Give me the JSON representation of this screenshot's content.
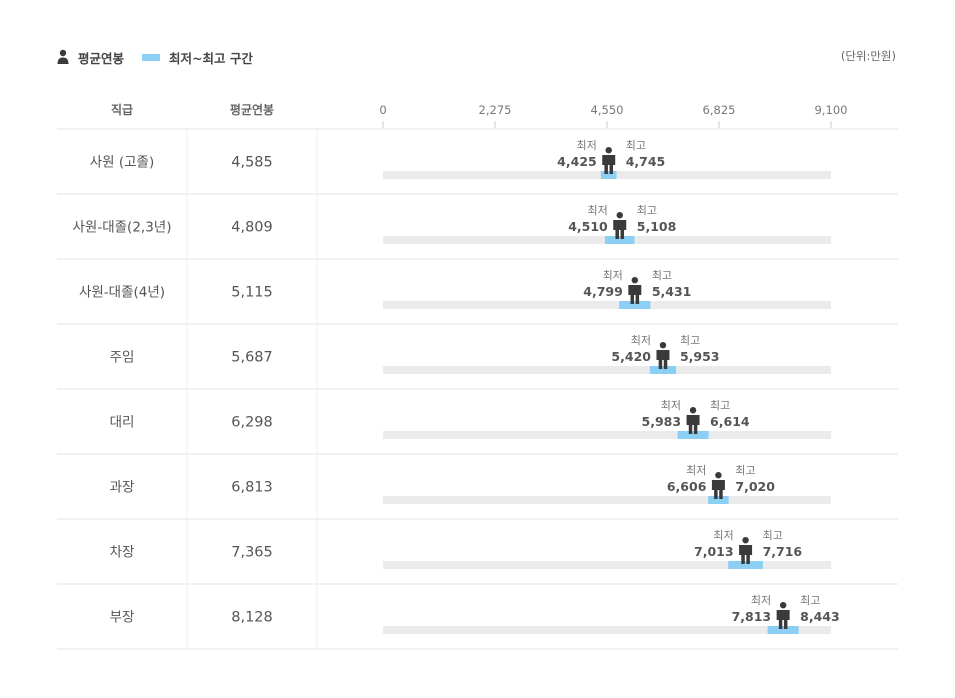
{
  "legend": {
    "avg_label": "평균연봉",
    "range_label": "최저~최고 구간"
  },
  "unit_label": "(단위:만원)",
  "colors": {
    "track": "#ebebeb",
    "range": "#8ccff5",
    "person": "#3a3a3a"
  },
  "chart_data": {
    "type": "table",
    "columns": [
      "직급",
      "평균연봉"
    ],
    "xlim": [
      0,
      9100
    ],
    "ticks": [
      "0",
      "2,275",
      "4,550",
      "6,825",
      "9,100"
    ],
    "tick_values": [
      0,
      2275,
      4550,
      6825,
      9100
    ],
    "min_label": "최저",
    "max_label": "최고",
    "rows": [
      {
        "rank": "사원 (고졸)",
        "avg": 4585,
        "avg_label": "4,585",
        "min": 4425,
        "min_label": "4,425",
        "max": 4745,
        "max_label": "4,745"
      },
      {
        "rank": "사원-대졸(2,3년)",
        "avg": 4809,
        "avg_label": "4,809",
        "min": 4510,
        "min_label": "4,510",
        "max": 5108,
        "max_label": "5,108"
      },
      {
        "rank": "사원-대졸(4년)",
        "avg": 5115,
        "avg_label": "5,115",
        "min": 4799,
        "min_label": "4,799",
        "max": 5431,
        "max_label": "5,431"
      },
      {
        "rank": "주임",
        "avg": 5687,
        "avg_label": "5,687",
        "min": 5420,
        "min_label": "5,420",
        "max": 5953,
        "max_label": "5,953"
      },
      {
        "rank": "대리",
        "avg": 6298,
        "avg_label": "6,298",
        "min": 5983,
        "min_label": "5,983",
        "max": 6614,
        "max_label": "6,614"
      },
      {
        "rank": "과장",
        "avg": 6813,
        "avg_label": "6,813",
        "min": 6606,
        "min_label": "6,606",
        "max": 7020,
        "max_label": "7,020"
      },
      {
        "rank": "차장",
        "avg": 7365,
        "avg_label": "7,365",
        "min": 7013,
        "min_label": "7,013",
        "max": 7716,
        "max_label": "7,716"
      },
      {
        "rank": "부장",
        "avg": 8128,
        "avg_label": "8,128",
        "min": 7813,
        "min_label": "7,813",
        "max": 8443,
        "max_label": "8,443"
      }
    ]
  }
}
